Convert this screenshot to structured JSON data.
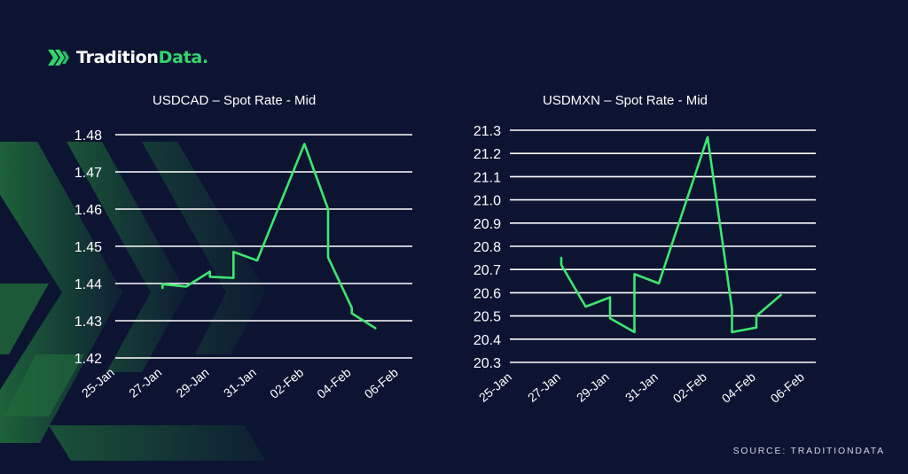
{
  "brand": {
    "name_part1": "Tradition",
    "name_part2": "Data."
  },
  "source_text": "SOURCE: TRADITIONDATA",
  "colors": {
    "background": "#0c1432",
    "line": "#3ee66f",
    "grid": "#ffffff",
    "accent": "#33d66e",
    "decor": "#1e5a35"
  },
  "chart_data": [
    {
      "type": "line",
      "title": "USDCAD – Spot Rate - Mid",
      "x_ticks": [
        "25-Jan",
        "27-Jan",
        "29-Jan",
        "31-Jan",
        "02-Feb",
        "04-Feb",
        "06-Feb"
      ],
      "y_ticks": [
        "1.48",
        "1.47",
        "1.46",
        "1.45",
        "1.44",
        "1.43",
        "1.42"
      ],
      "ylim": [
        1.42,
        1.48
      ],
      "xlim": [
        "2025-01-25",
        "2025-02-06"
      ],
      "series": [
        {
          "x": [
            "2025-01-27",
            "2025-01-27",
            "2025-01-28",
            "2025-01-29",
            "2025-01-29",
            "2025-01-30",
            "2025-01-30",
            "2025-01-31",
            "2025-02-02",
            "2025-02-03",
            "2025-02-03",
            "2025-02-04",
            "2025-02-04",
            "2025-02-05"
          ],
          "y": [
            1.4388,
            1.4398,
            1.4392,
            1.4432,
            1.4418,
            1.4415,
            1.4485,
            1.4462,
            1.4775,
            1.46,
            1.447,
            1.4335,
            1.432,
            1.428
          ]
        }
      ]
    },
    {
      "type": "line",
      "title": "USDMXN – Spot Rate - Mid",
      "x_ticks": [
        "25-Jan",
        "27-Jan",
        "29-Jan",
        "31-Jan",
        "02-Feb",
        "04-Feb",
        "06-Feb"
      ],
      "y_ticks": [
        "21.3",
        "21.2",
        "21.1",
        "21.0",
        "20.9",
        "20.8",
        "20.7",
        "20.6",
        "20.5",
        "20.4",
        "20.3"
      ],
      "ylim": [
        20.3,
        21.3
      ],
      "xlim": [
        "2025-01-25",
        "2025-02-06"
      ],
      "series": [
        {
          "x": [
            "2025-01-27",
            "2025-01-27",
            "2025-01-28",
            "2025-01-29",
            "2025-01-29",
            "2025-01-30",
            "2025-01-30",
            "2025-01-31",
            "2025-02-02",
            "2025-02-03",
            "2025-02-03",
            "2025-02-04",
            "2025-02-04",
            "2025-02-05"
          ],
          "y": [
            20.75,
            20.72,
            20.54,
            20.58,
            20.49,
            20.43,
            20.68,
            20.64,
            21.27,
            20.53,
            20.43,
            20.45,
            20.5,
            20.59
          ]
        }
      ]
    }
  ]
}
